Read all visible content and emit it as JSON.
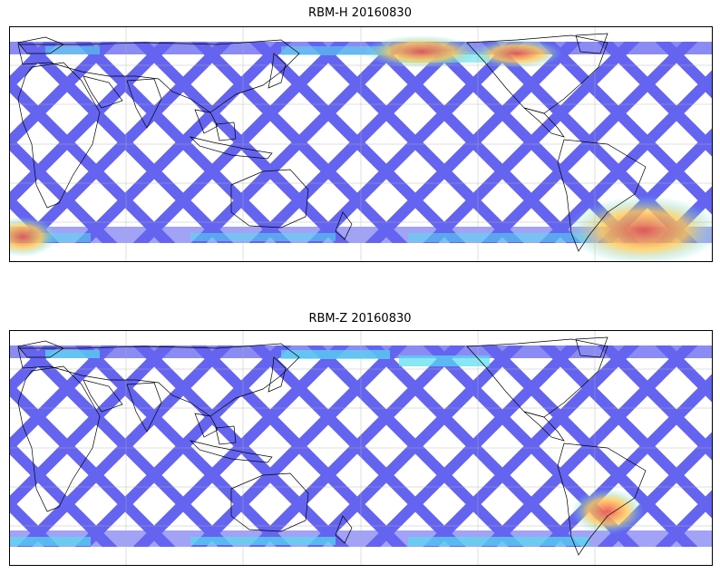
{
  "figure": {
    "panels": [
      {
        "id": "rbm-h",
        "title": "RBM-H 20160830",
        "variable": "RBM-H",
        "date": "20160830",
        "high_regions": [
          "southern-ocean-west",
          "south-atlantic",
          "north-pacific-east",
          "north-atlantic"
        ],
        "colors": {
          "swath_low": "#6464f0",
          "swath_mid": "#55ddf0",
          "swath_high": "#dd5555"
        }
      },
      {
        "id": "rbm-z",
        "title": "RBM-Z 20160830",
        "variable": "RBM-Z",
        "date": "20160830",
        "high_regions": [
          "south-atlantic-patagonia"
        ],
        "colors": {
          "swath_low": "#6464f0",
          "swath_mid": "#55ddf0",
          "swath_high": "#ee5555"
        }
      }
    ]
  }
}
